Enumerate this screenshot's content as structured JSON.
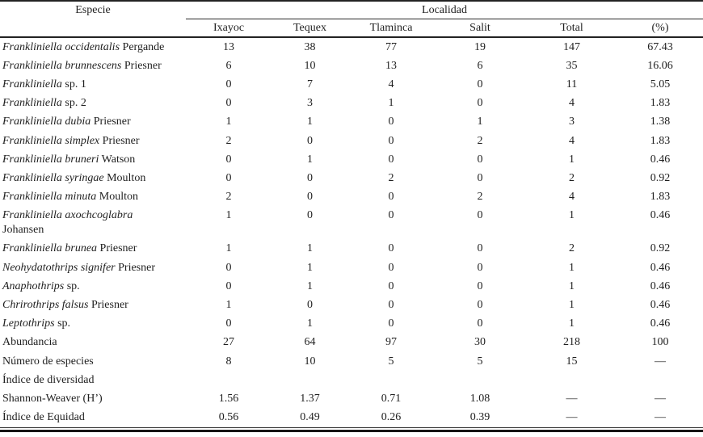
{
  "header": {
    "especie": "Especie",
    "localidad": "Localidad",
    "columns": [
      "Ixayoc",
      "Tequex",
      "Tlaminca",
      "Salit",
      "Total",
      "(%)"
    ]
  },
  "rows": [
    {
      "italic": "Frankliniella occidentalis",
      "regular": "Pergande",
      "line2": "",
      "values": [
        "13",
        "38",
        "77",
        "19",
        "147",
        "67.43"
      ]
    },
    {
      "italic": "Frankliniella brunnescens",
      "regular": "Priesner",
      "line2": "",
      "values": [
        "6",
        "10",
        "13",
        "6",
        "35",
        "16.06"
      ]
    },
    {
      "italic": "Frankliniella",
      "regular": "sp. 1",
      "line2": "",
      "values": [
        "0",
        "7",
        "4",
        "0",
        "11",
        "5.05"
      ]
    },
    {
      "italic": "Frankliniella",
      "regular": "sp. 2",
      "line2": "",
      "values": [
        "0",
        "3",
        "1",
        "0",
        "4",
        "1.83"
      ]
    },
    {
      "italic": "Frankliniella dubia",
      "regular": "Priesner",
      "line2": "",
      "values": [
        "1",
        "1",
        "0",
        "1",
        "3",
        "1.38"
      ]
    },
    {
      "italic": "Frankliniella simplex",
      "regular": "Priesner",
      "line2": "",
      "values": [
        "2",
        "0",
        "0",
        "2",
        "4",
        "1.83"
      ]
    },
    {
      "italic": "Frankliniella bruneri",
      "regular": "Watson",
      "line2": "",
      "values": [
        "0",
        "1",
        "0",
        "0",
        "1",
        "0.46"
      ]
    },
    {
      "italic": "Frankliniella syringae",
      "regular": "Moulton",
      "line2": "",
      "values": [
        "0",
        "0",
        "2",
        "0",
        "2",
        "0.92"
      ]
    },
    {
      "italic": "Frankliniella minuta",
      "regular": "Moulton",
      "line2": "",
      "values": [
        "2",
        "0",
        "0",
        "2",
        "4",
        "1.83"
      ]
    },
    {
      "italic": "Frankliniella axochcoglabra",
      "regular": "",
      "line2": "Johansen",
      "values": [
        "1",
        "0",
        "0",
        "0",
        "1",
        "0.46"
      ]
    },
    {
      "italic": "Frankliniella brunea",
      "regular": "Priesner",
      "line2": "",
      "values": [
        "1",
        "1",
        "0",
        "0",
        "2",
        "0.92"
      ]
    },
    {
      "italic": "Neohydatothrips signifer",
      "regular": "Priesner",
      "line2": "",
      "values": [
        "0",
        "1",
        "0",
        "0",
        "1",
        "0.46"
      ]
    },
    {
      "italic": "Anaphothrips",
      "regular": "sp.",
      "line2": "",
      "values": [
        "0",
        "1",
        "0",
        "0",
        "1",
        "0.46"
      ]
    },
    {
      "italic": "Chrirothrips falsus",
      "regular": "Priesner",
      "line2": "",
      "values": [
        "1",
        "0",
        "0",
        "0",
        "1",
        "0.46"
      ]
    },
    {
      "italic": "Leptothrips",
      "regular": "sp.",
      "line2": "",
      "values": [
        "0",
        "1",
        "0",
        "0",
        "1",
        "0.46"
      ]
    },
    {
      "italic": "",
      "regular": "Abundancia",
      "line2": "",
      "values": [
        "27",
        "64",
        "97",
        "30",
        "218",
        "100"
      ]
    },
    {
      "italic": "",
      "regular": "Número de especies",
      "line2": "",
      "values": [
        "8",
        "10",
        "5",
        "5",
        "15",
        "—"
      ]
    },
    {
      "italic": "",
      "regular": "Índice de diversidad",
      "line2": "",
      "values": [
        "",
        "",
        "",
        "",
        "",
        ""
      ]
    },
    {
      "italic": "",
      "regular": "Shannon-Weaver (H’)",
      "line2": "",
      "values": [
        "1.56",
        "1.37",
        "0.71",
        "1.08",
        "—",
        "—"
      ]
    },
    {
      "italic": "",
      "regular": "Índice de Equidad",
      "line2": "",
      "values": [
        "0.56",
        "0.49",
        "0.26",
        "0.39",
        "—",
        "—"
      ]
    }
  ]
}
